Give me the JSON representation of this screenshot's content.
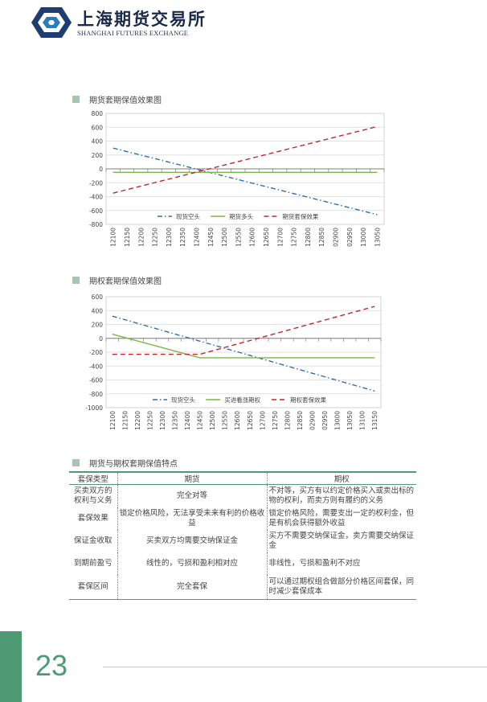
{
  "header": {
    "logo_cn": "上海期货交易所",
    "logo_en": "SHANGHAI FUTURES EXCHANGE"
  },
  "section1": {
    "title": "期货套期保值效果图"
  },
  "section2": {
    "title": "期权套期保值效果图"
  },
  "section3": {
    "title": "期货与期权套期保值特点"
  },
  "chart_data": [
    {
      "type": "line",
      "ylim": [
        -800,
        800
      ],
      "yticks": [
        800,
        600,
        400,
        200,
        0,
        -200,
        -400,
        -600,
        -800
      ],
      "categories": [
        "12100",
        "12150",
        "12200",
        "12250",
        "12300",
        "12350",
        "12400",
        "12450",
        "12500",
        "12550",
        "12600",
        "12650",
        "12700",
        "12750",
        "12800",
        "12850",
        "02900",
        "02950",
        "13000",
        "13050"
      ],
      "legend_position": "bottom-inside",
      "series": [
        {
          "name": "现货空头",
          "color": "#2f6fad",
          "dash": "dashdot",
          "start": 300,
          "end": -660
        },
        {
          "name": "期货多头",
          "color": "#7ab648",
          "dash": "solid",
          "start": -50,
          "end": -50
        },
        {
          "name": "期货套保效果",
          "color": "#c0282c",
          "dash": "dash",
          "start": -350,
          "end": 610
        }
      ]
    },
    {
      "type": "line",
      "ylim": [
        -1000,
        600
      ],
      "yticks": [
        600,
        400,
        200,
        0,
        -200,
        -400,
        -600,
        -800,
        -1000
      ],
      "categories": [
        "12100",
        "12150",
        "12200",
        "12250",
        "12300",
        "12350",
        "12400",
        "12450",
        "12500",
        "12550",
        "12600",
        "12650",
        "12700",
        "12750",
        "12800",
        "12850",
        "02900",
        "02950",
        "13000",
        "13050",
        "13100",
        "13150"
      ],
      "legend_position": "bottom-inside",
      "series": [
        {
          "name": "现货空头",
          "color": "#2f6fad",
          "dash": "dashdot",
          "points": [
            [
              0,
              320
            ],
            [
              21,
              -760
            ]
          ]
        },
        {
          "name": "买进看涨期权",
          "color": "#7ab648",
          "dash": "solid",
          "points": [
            [
              0,
              60
            ],
            [
              7,
              -280
            ],
            [
              21,
              -280
            ]
          ]
        },
        {
          "name": "期权套保效果",
          "color": "#c0282c",
          "dash": "dash",
          "points": [
            [
              0,
              -230
            ],
            [
              7,
              -230
            ],
            [
              21,
              460
            ]
          ]
        }
      ]
    }
  ],
  "table": {
    "headers": [
      "套保类型",
      "期货",
      "期权"
    ],
    "rows": [
      [
        "买卖双方的权利与义务",
        "完全对等",
        "不对等，买方有以约定价格买入或卖出标的物的权利，而卖方则有履约的义务"
      ],
      [
        "套保效果",
        "锁定价格风险，无法享受未来有利的价格收益",
        "锁定价格风险，需要支出一定的权利金，但是有机会获得额外收益"
      ],
      [
        "保证金收取",
        "买卖双方均需要交纳保证金",
        "买方不需要交纳保证金，卖方需要交纳保证金"
      ],
      [
        "到期前盈亏",
        "线性的，亏损和盈利相对应",
        "非线性，亏损和盈利不对应"
      ],
      [
        "套保区间",
        "完全套保",
        "可以通过期权组合做部分价格区间套保，同时减少套保成本"
      ]
    ]
  },
  "footer": {
    "page_number": "23"
  }
}
